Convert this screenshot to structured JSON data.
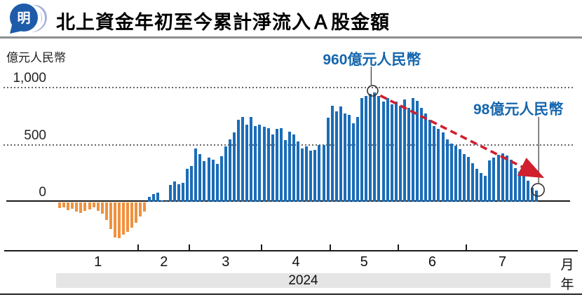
{
  "header": {
    "logo_char": "明",
    "title": "北上資金年初至今累計淨流入Ａ股金額"
  },
  "chart_data": {
    "type": "bar",
    "title": "北上資金年初至今累計淨流入Ａ股金額",
    "unit_label": "億元人民幣",
    "y_ticks": [
      "1,000",
      "500",
      "0"
    ],
    "y_tick_values": [
      1000,
      500,
      0
    ],
    "ylim": [
      -450,
      1100
    ],
    "grid": "dotted horizontal lines at 500 and 1,000",
    "x_unit_label": "月",
    "year_unit_label": "年",
    "year_label": "2024",
    "month_labels": [
      "1",
      "2",
      "3",
      "4",
      "5",
      "6",
      "7"
    ],
    "month_start_indices": [
      0,
      19,
      31,
      48,
      64,
      80,
      96
    ],
    "annotations": [
      {
        "text": "960億元人民幣",
        "value": 960,
        "bar_index": 74
      },
      {
        "text": "98億元人民幣",
        "value": 98,
        "bar_index": 112
      }
    ],
    "trend_arrow": "red dashed arrow from the 960 peak down to the final 98 bar",
    "colors": {
      "positive_bar": "#1b6db8",
      "negative_bar": "#f0913f",
      "annotation_text": "#1566ad",
      "trend_arrow": "#d01f2d"
    },
    "series": [
      {
        "name": "北上資金年初至今累計淨流入",
        "values": [
          -50,
          -40,
          -65,
          -55,
          -80,
          -90,
          -75,
          -60,
          -45,
          -75,
          -100,
          -155,
          -235,
          -305,
          -310,
          -285,
          -255,
          -220,
          -175,
          -125,
          -80,
          45,
          65,
          80,
          15,
          5,
          145,
          180,
          155,
          165,
          290,
          310,
          465,
          420,
          355,
          385,
          370,
          330,
          400,
          485,
          545,
          610,
          720,
          740,
          675,
          740,
          660,
          675,
          655,
          645,
          590,
          635,
          645,
          540,
          615,
          590,
          525,
          465,
          485,
          445,
          455,
          500,
          500,
          735,
          840,
          790,
          835,
          775,
          760,
          690,
          740,
          905,
          925,
          945,
          960,
          925,
          880,
          910,
          850,
          880,
          840,
          895,
          820,
          905,
          885,
          820,
          770,
          720,
          665,
          635,
          605,
          545,
          510,
          490,
          460,
          415,
          390,
          340,
          290,
          250,
          225,
          360,
          385,
          410,
          425,
          405,
          370,
          295,
          265,
          235,
          185,
          120,
          98
        ]
      }
    ]
  }
}
